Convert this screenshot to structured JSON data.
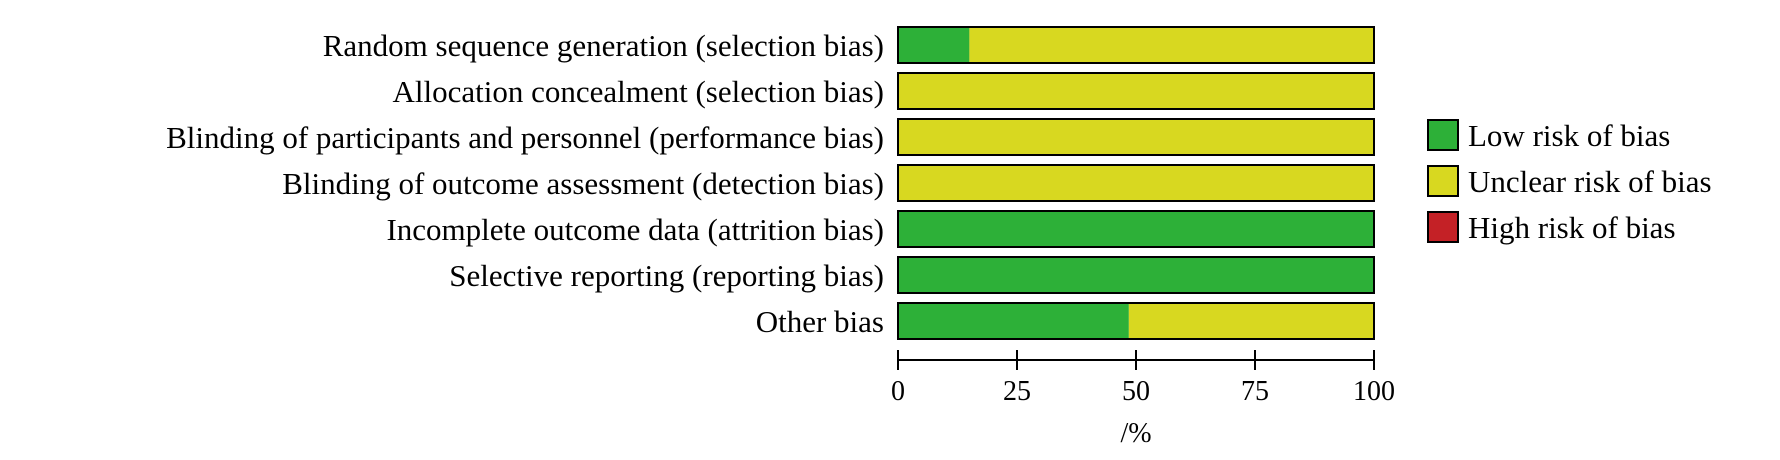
{
  "chart_data": {
    "type": "bar",
    "stacked": true,
    "orientation": "horizontal",
    "categories": [
      "Random sequence generation (selection bias)",
      "Allocation concealment (selection bias)",
      "Blinding of participants and personnel (performance bias)",
      "Blinding of outcome assessment (detection bias)",
      "Incomplete outcome data (attrition bias)",
      "Selective reporting (reporting bias)",
      "Other bias"
    ],
    "series": [
      {
        "name": "Low risk of bias",
        "color": "#2db038",
        "values": [
          15,
          0,
          0,
          0,
          100,
          100,
          48.5
        ]
      },
      {
        "name": "Unclear risk of bias",
        "color": "#d8d820",
        "values": [
          85,
          100,
          100,
          100,
          0,
          0,
          51.5
        ]
      },
      {
        "name": "High risk of bias",
        "color": "#c42126",
        "values": [
          0,
          0,
          0,
          0,
          0,
          0,
          0
        ]
      }
    ],
    "xlim": [
      0,
      100
    ],
    "xticks": [
      "0",
      "25",
      "50",
      "75",
      "100"
    ],
    "xlabel": "/%",
    "legend": "right"
  }
}
